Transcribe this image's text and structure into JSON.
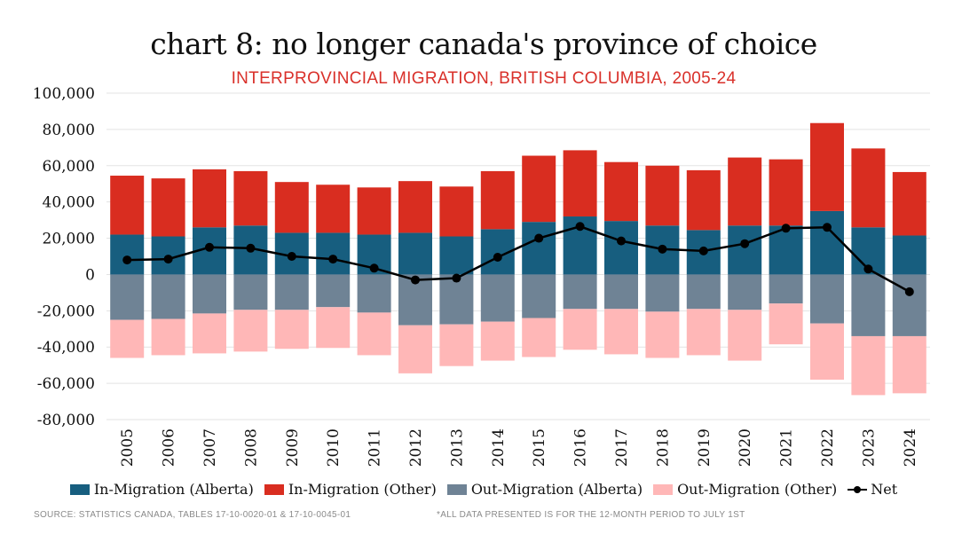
{
  "chart_data": {
    "type": "bar",
    "title": "chart 8: no longer canada's province of choice",
    "subtitle": "INTERPROVINCIAL MIGRATION, BRITISH COLUMBIA, 2005-24",
    "categories": [
      "2005",
      "2006",
      "2007",
      "2008",
      "2009",
      "2010",
      "2011",
      "2012",
      "2013",
      "2014",
      "2015",
      "2016",
      "2017",
      "2018",
      "2019",
      "2020",
      "2021",
      "2022",
      "2023",
      "2024"
    ],
    "ylim": [
      -80000,
      100000
    ],
    "yticks": [
      100000,
      80000,
      60000,
      40000,
      20000,
      0,
      -20000,
      -40000,
      -60000,
      -80000
    ],
    "ytick_labels": [
      "100,000",
      "80,000",
      "60,000",
      "40,000",
      "20,000",
      "0",
      "-20,000",
      "-40,000",
      "-60,000",
      "-80,000"
    ],
    "grid": true,
    "legend_position": "bottom",
    "stacked": true,
    "series": [
      {
        "name": "In-Migration (Alberta)",
        "color": "#175e7f",
        "values": [
          22000,
          21000,
          26000,
          27000,
          23000,
          23000,
          22000,
          23000,
          21000,
          25000,
          29000,
          32000,
          29500,
          27000,
          24500,
          27000,
          27000,
          35000,
          26000,
          21500
        ]
      },
      {
        "name": "In-Migration (Other)",
        "color": "#d92d20",
        "values": [
          32500,
          32000,
          32000,
          30000,
          28000,
          26500,
          26000,
          28500,
          27500,
          32000,
          36500,
          36500,
          32500,
          33000,
          33000,
          37500,
          36500,
          48500,
          43500,
          35000
        ]
      },
      {
        "name": "Out-Migration (Alberta)",
        "color": "#6f8395",
        "values": [
          -25000,
          -24500,
          -21500,
          -19500,
          -19500,
          -18000,
          -21000,
          -28000,
          -27500,
          -26000,
          -24000,
          -19000,
          -19000,
          -20500,
          -19000,
          -19500,
          -16000,
          -27000,
          -34000,
          -34000
        ]
      },
      {
        "name": "Out-Migration (Other)",
        "color": "#ffb7b7",
        "values": [
          -21000,
          -20000,
          -22000,
          -23000,
          -21500,
          -22500,
          -23500,
          -26500,
          -23000,
          -21500,
          -21500,
          -22500,
          -25000,
          -25500,
          -25500,
          -28000,
          -22500,
          -31000,
          -32500,
          -31500
        ]
      },
      {
        "name": "Net",
        "color": "#000000",
        "line": true,
        "values": [
          8000,
          8500,
          15000,
          14500,
          10000,
          8500,
          3500,
          -3000,
          -2000,
          9500,
          20000,
          26500,
          18500,
          14000,
          13000,
          17000,
          25500,
          26000,
          3000,
          -9500
        ]
      }
    ],
    "footnote_source": "SOURCE: STATISTICS CANADA, TABLES 17-10-0020-01 & 17-10-0045-01",
    "footnote_note": "*ALL DATA PRESENTED IS FOR THE 12-MONTH PERIOD TO JULY 1ST"
  }
}
